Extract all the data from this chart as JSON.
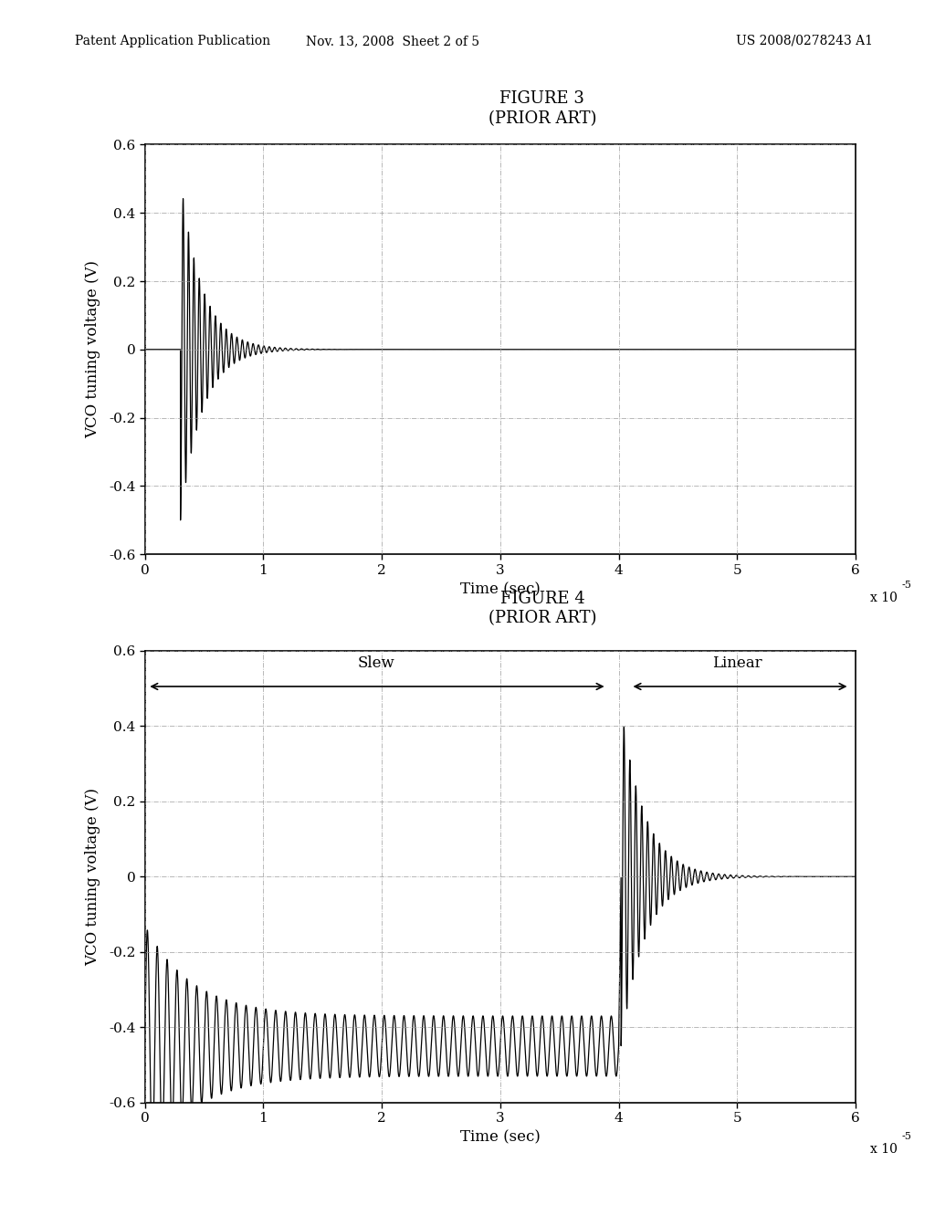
{
  "fig_width": 10.24,
  "fig_height": 13.2,
  "bg_color": "#ffffff",
  "header_left": "Patent Application Publication",
  "header_mid": "Nov. 13, 2008  Sheet 2 of 5",
  "header_right": "US 2008/0278243 A1",
  "fig3_title": "FIGURE 3",
  "fig3_subtitle": "(PRIOR ART)",
  "fig4_title": "FIGURE 4",
  "fig4_subtitle": "(PRIOR ART)",
  "ylabel": "VCO tuning voltage (V)",
  "xlabel": "Time (sec)",
  "xscale_label": "x 10-5",
  "ylim": [
    -0.6,
    0.6
  ],
  "xlim": [
    0,
    6
  ],
  "yticks": [
    -0.6,
    -0.4,
    -0.2,
    0,
    0.2,
    0.4,
    0.6
  ],
  "xticks": [
    0,
    1,
    2,
    3,
    4,
    5,
    6
  ],
  "slew_label": "Slew",
  "linear_label": "Linear",
  "grid_color": "#999999",
  "line_color": "#000000",
  "tick_fontsize": 11,
  "label_fontsize": 12,
  "title_fontsize": 13,
  "header_fontsize": 10
}
